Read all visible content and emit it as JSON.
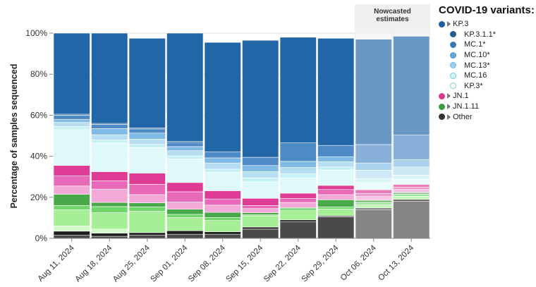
{
  "chart_data": {
    "type": "bar",
    "stacked": true,
    "normalized": true,
    "ylabel": "Percentage of samples sequenced",
    "yticks": [
      "0%",
      "20%",
      "40%",
      "60%",
      "80%",
      "100%"
    ],
    "ylim": [
      0,
      100
    ],
    "grid": true,
    "categories": [
      "Aug 11, 2024",
      "Aug 18, 2024",
      "Aug 25, 2024",
      "Sep 01, 2024",
      "Sep 08, 2024",
      "Sep 15, 2024",
      "Sep 22, 2024",
      "Sep 29, 2024",
      "Oct 06, 2024",
      "Oct 13, 2024"
    ],
    "nowcast": {
      "label_lines": [
        "Nowcasted",
        "estimates"
      ],
      "start_index": 8
    },
    "series": [
      {
        "key": "other_a",
        "color": "#4a4a4a",
        "values": [
          1.5,
          1,
          1.5,
          2,
          2,
          4.5,
          8,
          10.5,
          14,
          18
        ]
      },
      {
        "key": "other_b",
        "color": "#1e1e1e",
        "values": [
          2,
          1.5,
          1.3,
          1.7,
          1.2,
          1,
          1,
          0.5,
          0.8,
          1
        ]
      },
      {
        "key": "jn111_a",
        "color": "#d4f9c8",
        "values": [
          2.5,
          2,
          0,
          0,
          0,
          0,
          0,
          0,
          0,
          0
        ]
      },
      {
        "key": "jn111_b",
        "color": "#a6ef97",
        "values": [
          8,
          8,
          10.5,
          6.5,
          5.5,
          5.5,
          4.5,
          3.3,
          1.6,
          1.5
        ]
      },
      {
        "key": "jn111_c",
        "color": "#6fd66a",
        "values": [
          2,
          3,
          2,
          1.5,
          1.5,
          0.5,
          1,
          1,
          1,
          1
        ]
      },
      {
        "key": "jn111_d",
        "color": "#49a84a",
        "values": [
          5.5,
          2,
          2,
          2.5,
          2.5,
          1,
          0.5,
          3.5,
          1.2,
          0.8
        ]
      },
      {
        "key": "jn1_a",
        "color": "#f3a9d8",
        "values": [
          4,
          6.5,
          4,
          3.5,
          3.5,
          2,
          2.5,
          2.5,
          1.8,
          1.5
        ]
      },
      {
        "key": "jn1_b",
        "color": "#e869b7",
        "values": [
          5,
          4,
          5,
          5,
          3,
          1.5,
          2,
          2.5,
          1.5,
          1.2
        ]
      },
      {
        "key": "jn1_c",
        "color": "#de3b95",
        "values": [
          5,
          4.5,
          5.5,
          4.5,
          4,
          3.5,
          2.5,
          2,
          1.8,
          1.3
        ]
      },
      {
        "key": "kp3_c",
        "color": "#dff9fa",
        "values": [
          17.5,
          14,
          12.5,
          11.5,
          9,
          8,
          7.5,
          7.5,
          3.5,
          2.5
        ]
      },
      {
        "key": "kp3_d",
        "color": "#c6f1f4",
        "values": [
          1.5,
          1.5,
          1.5,
          1.5,
          1.5,
          2,
          2,
          1.5,
          2,
          2
        ]
      },
      {
        "key": "mc13",
        "color": "#b6ddf2",
        "values": [
          2,
          2.5,
          2.5,
          2.5,
          3,
          3,
          3,
          2.5,
          4,
          4
        ]
      },
      {
        "key": "mc10",
        "color": "#80bbe6",
        "values": [
          1.5,
          3,
          3,
          2,
          2.5,
          3,
          3,
          2.5,
          3.5,
          3.5
        ]
      },
      {
        "key": "mc1",
        "color": "#4e8ac5",
        "values": [
          2,
          2,
          2,
          2,
          3,
          4,
          9,
          5.5,
          9,
          12
        ]
      },
      {
        "key": "kp311",
        "color": "#15558f",
        "values": [
          0.5,
          0.5,
          0.5,
          0.5,
          0,
          0,
          0,
          0,
          0,
          0
        ]
      },
      {
        "key": "kp3",
        "color": "#2166a7",
        "values": [
          39.5,
          44,
          43.7,
          52.8,
          53.3,
          57,
          51.5,
          52.2,
          51.3,
          48.2
        ]
      }
    ]
  },
  "legend": {
    "title": "COVID-19 variants:",
    "items": [
      {
        "label": "KP.3",
        "color": "#1f5e9e",
        "border": "#1f5e9e",
        "sub": false
      },
      {
        "label": "KP.3.1.1*",
        "color": "#245b8f",
        "border": "#245b8f",
        "sub": true
      },
      {
        "label": "MC.1*",
        "color": "#3a78b5",
        "border": "#3a78b5",
        "sub": true
      },
      {
        "label": "MC.10*",
        "color": "#6aa3d8",
        "border": "#4f8fcc",
        "sub": true
      },
      {
        "label": "MC.13*",
        "color": "#9dcff0",
        "border": "#6fb3de",
        "sub": true
      },
      {
        "label": "MC.16",
        "color": "#d6f5f7",
        "border": "#6ccfd8",
        "sub": true
      },
      {
        "label": "KP.3*",
        "color": "#ffffff",
        "border": "#7ccfd8",
        "sub": true
      },
      {
        "label": "JN.1",
        "color": "#d63a8f",
        "border": "#d63a8f",
        "sub": false
      },
      {
        "label": "JN.1.11",
        "color": "#3e9c46",
        "border": "#3e9c46",
        "sub": false
      },
      {
        "label": "Other",
        "color": "#333333",
        "border": "#333333",
        "sub": false
      }
    ]
  }
}
